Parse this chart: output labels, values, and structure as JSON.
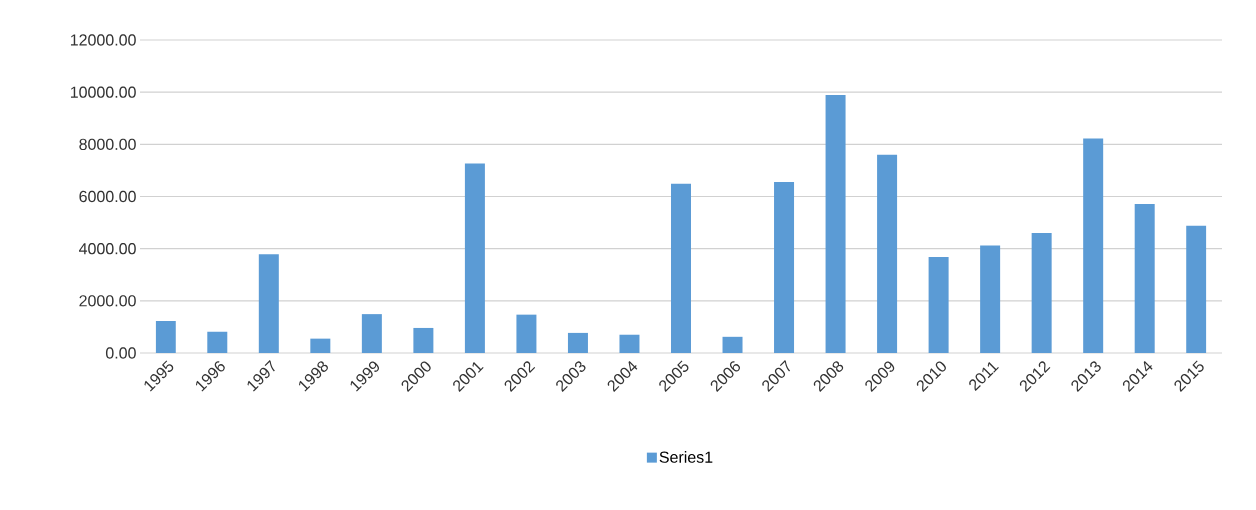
{
  "chart_data": {
    "type": "bar",
    "categories": [
      "1995",
      "1996",
      "1997",
      "1998",
      "1999",
      "2000",
      "2001",
      "2002",
      "2003",
      "2004",
      "2005",
      "2006",
      "2007",
      "2008",
      "2009",
      "2010",
      "2011",
      "2012",
      "2013",
      "2014",
      "2015"
    ],
    "series": [
      {
        "name": "Series1",
        "color": "#5b9bd5",
        "values": [
          1230,
          810,
          3790,
          550,
          1490,
          960,
          7260,
          1470,
          770,
          700,
          6490,
          620,
          6560,
          9890,
          7600,
          3680,
          4120,
          4600,
          8220,
          5710,
          4880
        ]
      }
    ],
    "ylim": [
      0,
      12000
    ],
    "yticks": [
      {
        "value": 0,
        "label": "0.00"
      },
      {
        "value": 2000,
        "label": "2000.00"
      },
      {
        "value": 4000,
        "label": "4000.00"
      },
      {
        "value": 6000,
        "label": "6000.00"
      },
      {
        "value": 8000,
        "label": "8000.00"
      },
      {
        "value": 10000,
        "label": "10000.00"
      },
      {
        "value": 12000,
        "label": "12000.00"
      }
    ],
    "grid": "y",
    "legend": "bottom"
  }
}
